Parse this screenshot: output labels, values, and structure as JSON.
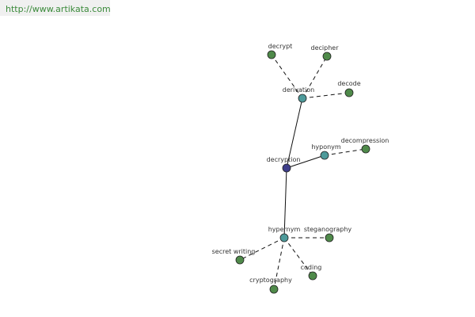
{
  "header": {
    "url": "http://www.artikata.com"
  },
  "nodes": [
    {
      "label": "decryption"
    },
    {
      "label": "derivation"
    },
    {
      "label": "hyponym"
    },
    {
      "label": "hypernym"
    },
    {
      "label": "decrypt"
    },
    {
      "label": "decipher"
    },
    {
      "label": "decode"
    },
    {
      "label": "decompression"
    },
    {
      "label": "steganography"
    },
    {
      "label": "secret writing"
    },
    {
      "label": "coding"
    },
    {
      "label": "cryptography"
    }
  ]
}
